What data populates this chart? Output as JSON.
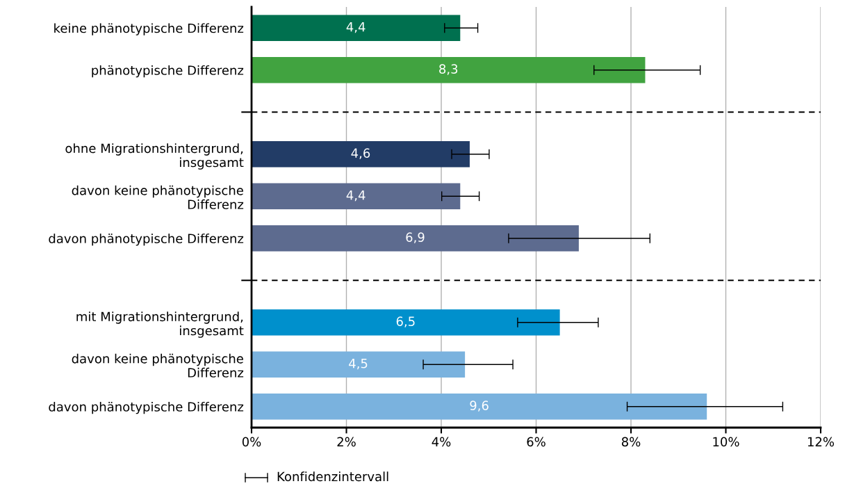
{
  "chart_data": {
    "type": "bar",
    "orientation": "horizontal",
    "categories": [
      "keine phänotypische Differenz",
      "phänotypische Differenz",
      null,
      "ohne Migrationshintergrund,\ninsgesamt",
      "davon keine phänotypische\nDifferenz",
      "davon phänotypische Differenz",
      null,
      "mit Migrationshintergrund,\ninsgesamt",
      "davon keine phänotypische\nDifferenz",
      "davon phänotypische Differenz"
    ],
    "values": [
      4.4,
      8.3,
      null,
      4.6,
      4.4,
      6.9,
      null,
      6.5,
      4.5,
      9.6
    ],
    "colors": [
      "#00704f",
      "#41a340",
      null,
      "#223c66",
      "#5d6b8f",
      "#5d6b8f",
      null,
      "#0090cc",
      "#7ab2de",
      "#7ab2de"
    ],
    "value_labels": [
      "4,4",
      "8,3",
      null,
      "4,6",
      "4,4",
      "6,9",
      null,
      "6,5",
      "4,5",
      "9,6"
    ],
    "errors": [
      [
        4.07,
        4.77
      ],
      [
        7.22,
        9.46
      ],
      null,
      [
        4.22,
        5.01
      ],
      [
        4.01,
        4.8
      ],
      [
        5.42,
        8.4
      ],
      null,
      [
        5.61,
        7.31
      ],
      [
        3.62,
        5.51
      ],
      [
        7.92,
        11.2
      ]
    ],
    "xlim": [
      0,
      12
    ],
    "xticks": [
      {
        "value": 0,
        "label": "0%"
      },
      {
        "value": 2,
        "label": "2%"
      },
      {
        "value": 4,
        "label": "4%"
      },
      {
        "value": 6,
        "label": "6%"
      },
      {
        "value": 8,
        "label": "8%"
      },
      {
        "value": 10,
        "label": "10%"
      },
      {
        "value": 12,
        "label": "12%"
      }
    ],
    "grid": "x",
    "annotations": [
      "Konfidenzintervall"
    ]
  }
}
